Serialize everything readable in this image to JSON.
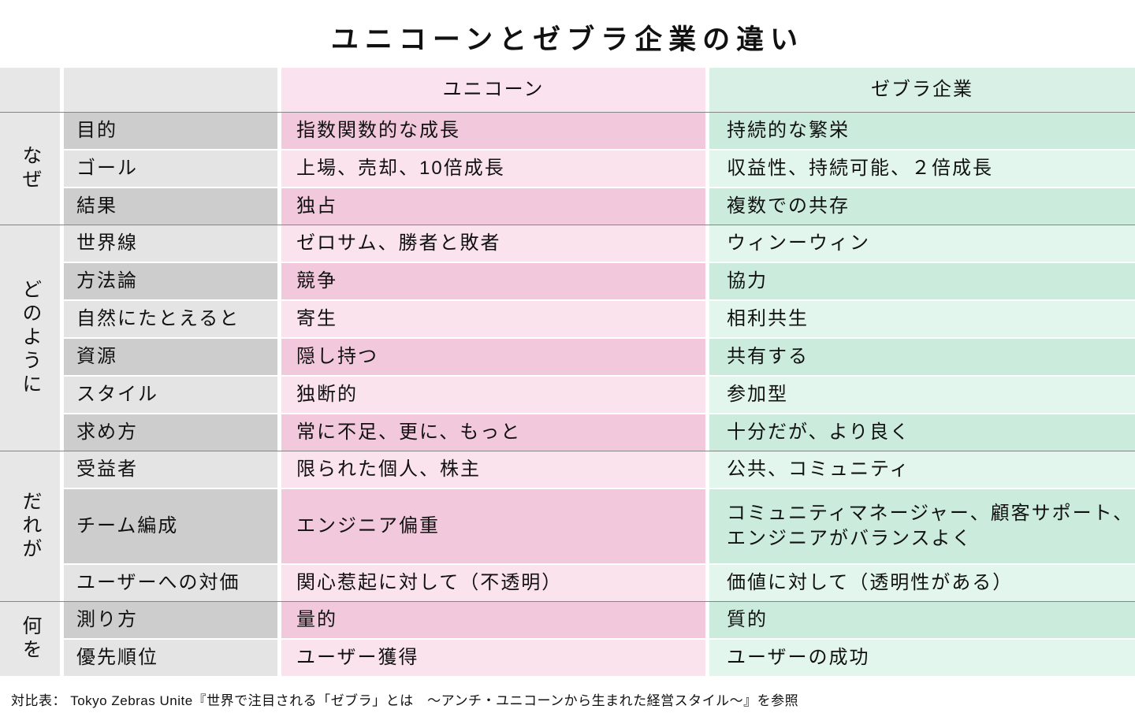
{
  "chart_data": {
    "type": "table",
    "title": "ユニコーンとゼブラ企業の違い",
    "column_headers": {
      "unicorn": "ユニコーン",
      "zebra": "ゼブラ企業"
    },
    "row_group_axis": [
      "なぜ",
      "どのように",
      "だれが",
      "何を"
    ],
    "groups": [
      {
        "label": "なぜ",
        "rows": [
          {
            "label": "目的",
            "unicorn": "指数関数的な成長",
            "zebra": "持続的な繁栄"
          },
          {
            "label": "ゴール",
            "unicorn": "上場、売却、10倍成長",
            "zebra": "収益性、持続可能、２倍成長"
          },
          {
            "label": "結果",
            "unicorn": "独占",
            "zebra": "複数での共存"
          }
        ]
      },
      {
        "label": "どのように",
        "rows": [
          {
            "label": "世界線",
            "unicorn": "ゼロサム、勝者と敗者",
            "zebra": "ウィンーウィン"
          },
          {
            "label": "方法論",
            "unicorn": "競争",
            "zebra": "協力"
          },
          {
            "label": "自然にたとえると",
            "unicorn": "寄生",
            "zebra": "相利共生"
          },
          {
            "label": "資源",
            "unicorn": "隠し持つ",
            "zebra": "共有する"
          },
          {
            "label": "スタイル",
            "unicorn": "独断的",
            "zebra": "参加型"
          },
          {
            "label": "求め方",
            "unicorn": "常に不足、更に、もっと",
            "zebra": "十分だが、より良く"
          }
        ]
      },
      {
        "label": "だれが",
        "rows": [
          {
            "label": "受益者",
            "unicorn": "限られた個人、株主",
            "zebra": "公共、コミュニティ"
          },
          {
            "label": "チーム編成",
            "unicorn": "エンジニア偏重",
            "zebra": "コミュニティマネージャー、顧客サポート、\nエンジニアがバランスよく",
            "tall": true
          },
          {
            "label": "ユーザーへの対価",
            "unicorn": "関心惹起に対して（不透明）",
            "zebra": "価値に対して（透明性がある）"
          }
        ]
      },
      {
        "label": "何を",
        "rows": [
          {
            "label": "測り方",
            "unicorn": "量的",
            "zebra": "質的"
          },
          {
            "label": "優先順位",
            "unicorn": "ユーザー獲得",
            "zebra": "ユーザーの成功"
          }
        ]
      }
    ]
  },
  "footer": "対比表： Tokyo Zebras Unite『世界で注目される「ゼブラ」とは　～アンチ・ユニコーンから生まれた経営スタイル～』を参照",
  "colors": {
    "background": "#ffffff",
    "text": "#111111",
    "divider": "#858585",
    "gray_group": "#e7e7e7",
    "gray_dark": "#cdcdcd",
    "gray_light": "#e4e4e4",
    "pink_header": "#fae3ee",
    "pink_dark": "#f2c9dc",
    "pink_light": "#fae3ec",
    "mint_header": "#d9f0e6",
    "mint_dark": "#cbecdd",
    "mint_light": "#e3f6ed"
  }
}
